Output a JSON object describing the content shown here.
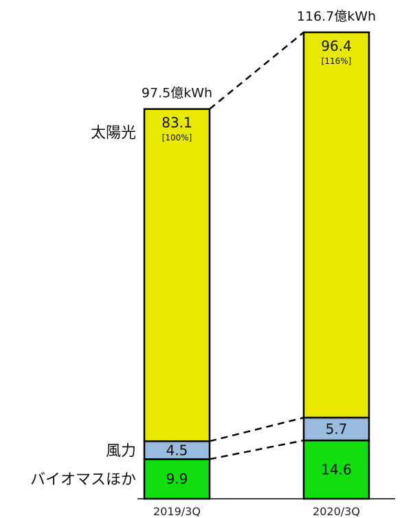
{
  "chart_data": {
    "type": "bar",
    "stacked": true,
    "categories": [
      "2019/3Q",
      "2020/3Q"
    ],
    "series": [
      {
        "name": "バイオマスほか",
        "values": [
          9.9,
          14.6
        ],
        "labels": [
          "9.9",
          "14.6"
        ],
        "color": "#11dd11"
      },
      {
        "name": "風力",
        "values": [
          4.5,
          5.7
        ],
        "labels": [
          "4.5",
          "5.7"
        ],
        "color": "#99bbdd"
      },
      {
        "name": "太陽光",
        "values": [
          83.1,
          96.4
        ],
        "labels": [
          "83.1",
          "96.4"
        ],
        "subLabels": [
          "[100%]",
          "[116%]"
        ],
        "color": "#e8e800"
      }
    ],
    "totals": [
      "97.5億kWh",
      "116.7億kWh"
    ],
    "ylim": [
      0,
      116.7
    ],
    "connectors": "dashed",
    "grid": false
  }
}
